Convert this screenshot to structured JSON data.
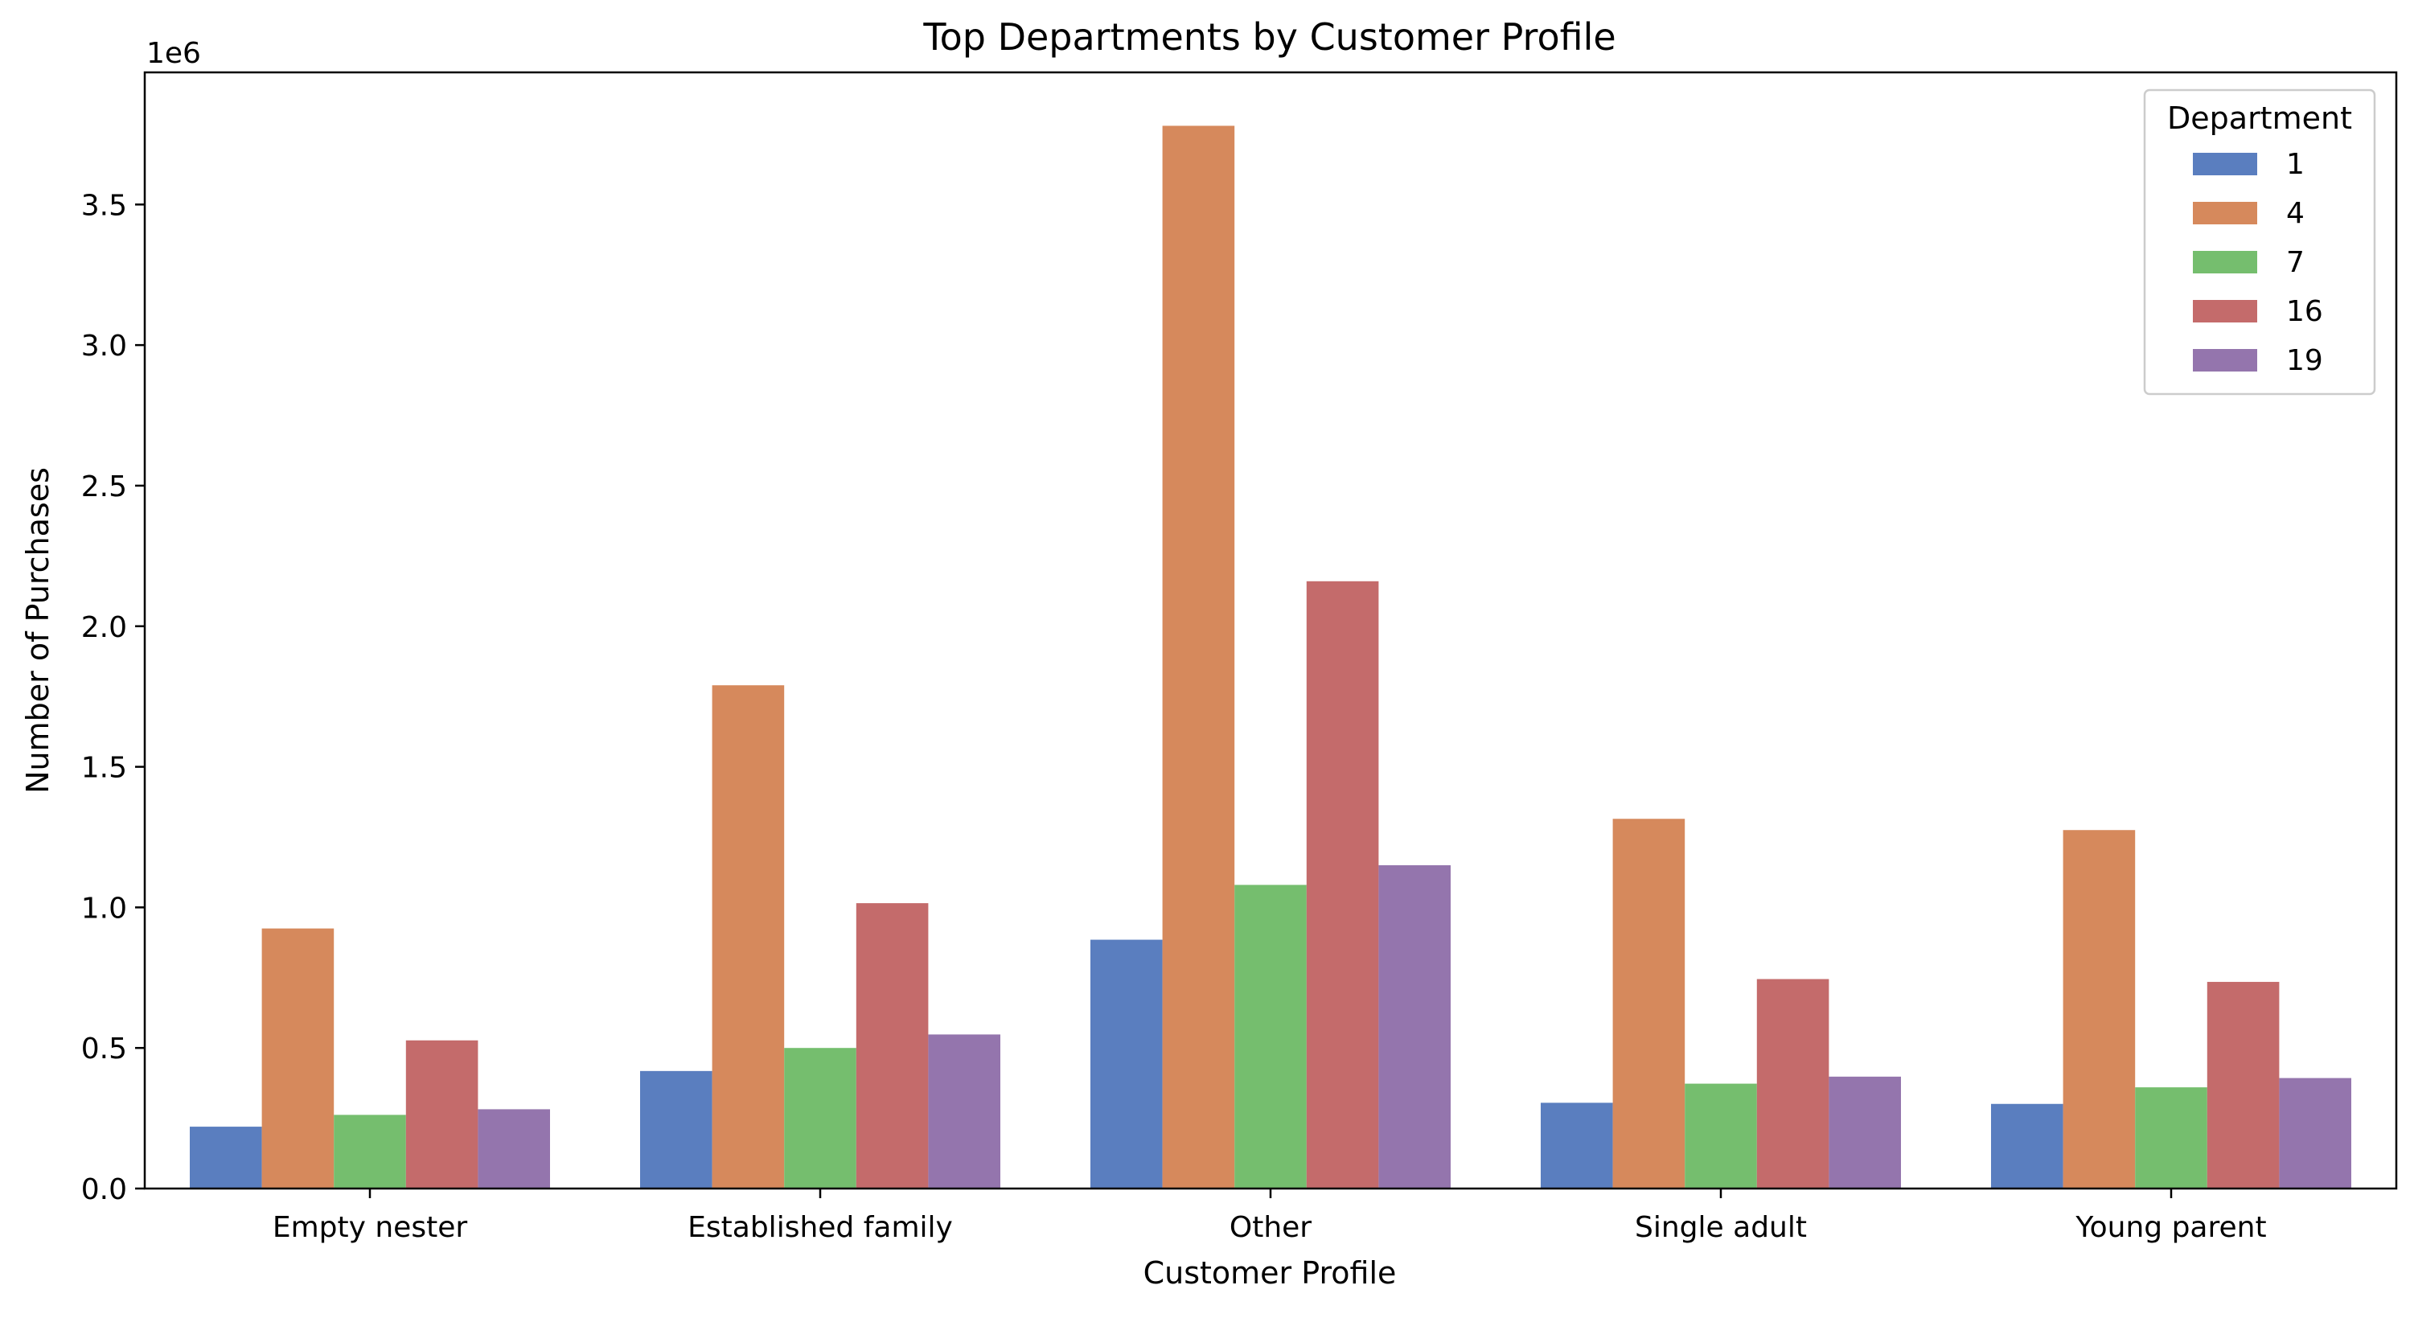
{
  "chart_data": {
    "type": "bar",
    "title": "Top Departments by Customer Profile",
    "xlabel": "Customer Profile",
    "ylabel": "Number of Purchases",
    "y_offset_text": "1e6",
    "ylim": [
      0,
      3.97
    ],
    "y_scale_factor": 1000000,
    "y_ticks": [
      "0.0",
      "0.5",
      "1.0",
      "1.5",
      "2.0",
      "2.5",
      "3.0",
      "3.5"
    ],
    "y_tick_values": [
      0,
      0.5,
      1.0,
      1.5,
      2.0,
      2.5,
      3.0,
      3.5
    ],
    "categories": [
      "Empty nester",
      "Established family",
      "Other",
      "Single adult",
      "Young parent"
    ],
    "legend_title": "Department",
    "legend_position": "top-right",
    "grid": false,
    "series": [
      {
        "name": "1",
        "color": "#5a7ebf",
        "values": [
          220000,
          418000,
          885000,
          305000,
          301000
        ]
      },
      {
        "name": "4",
        "color": "#d6895c",
        "values": [
          925000,
          1790000,
          3780000,
          1315000,
          1275000
        ]
      },
      {
        "name": "7",
        "color": "#75be6e",
        "values": [
          262000,
          500000,
          1080000,
          373000,
          360000
        ]
      },
      {
        "name": "16",
        "color": "#c46b6b",
        "values": [
          527000,
          1015000,
          2160000,
          745000,
          735000
        ]
      },
      {
        "name": "19",
        "color": "#9475ad",
        "values": [
          282000,
          548000,
          1150000,
          398000,
          393000
        ]
      }
    ]
  }
}
